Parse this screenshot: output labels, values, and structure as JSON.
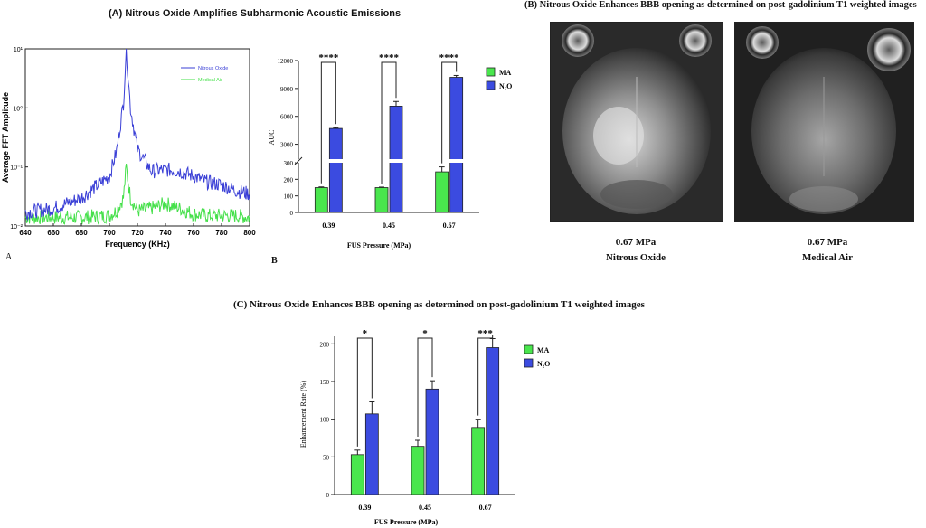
{
  "panel_A": {
    "title": "(A) Nitrous Oxide Amplifies Subharmonic Acoustic Emissions",
    "letter": "A"
  },
  "panel_B": {
    "letter": "B"
  },
  "panel_B_images": {
    "title": "(B)  Nitrous Oxide Enhances BBB opening as determined on post-gadolinium T1 weighted images",
    "left_caption_pressure": "0.67 MPa",
    "left_caption_gas": "Nitrous Oxide",
    "right_caption_pressure": "0.67 MPa",
    "right_caption_gas": "Medical Air"
  },
  "panel_C": {
    "title": "(C)  Nitrous Oxide Enhances BBB opening as determined on post-gadolinium T1 weighted images"
  },
  "colors": {
    "nitrous_blue": "#3a3fd6",
    "air_green": "#45e04a",
    "bar_green": "#49e64d",
    "bar_blue": "#3b4be0"
  },
  "chart_data": [
    {
      "type": "line",
      "xlabel": "Frequency (KHz)",
      "ylabel": "Average FFT Amplitude",
      "x_ticks": [
        "640",
        "660",
        "680",
        "700",
        "720",
        "740",
        "760",
        "780",
        "800"
      ],
      "y_ticks": [
        "10¹",
        "10⁰",
        "10⁻¹",
        "10⁻²"
      ],
      "xlim": [
        640,
        800
      ],
      "ylim": [
        0.01,
        10
      ],
      "yscale": "log",
      "legend_position": "top-right",
      "series": [
        {
          "name": "Nitrous Oxide",
          "x": [
            640,
            660,
            680,
            700,
            705,
            710,
            712,
            715,
            720,
            730,
            740,
            750,
            760,
            770,
            780,
            790,
            800
          ],
          "y": [
            0.017,
            0.02,
            0.03,
            0.07,
            0.18,
            1.2,
            10,
            1.0,
            0.2,
            0.085,
            0.09,
            0.085,
            0.07,
            0.055,
            0.05,
            0.04,
            0.035
          ]
        },
        {
          "name": "Medical Air",
          "x": [
            640,
            660,
            680,
            700,
            705,
            710,
            712,
            715,
            720,
            730,
            740,
            750,
            760,
            770,
            780,
            790,
            800
          ],
          "y": [
            0.014,
            0.014,
            0.014,
            0.015,
            0.018,
            0.03,
            0.1,
            0.03,
            0.018,
            0.02,
            0.024,
            0.02,
            0.016,
            0.015,
            0.015,
            0.015,
            0.014
          ]
        }
      ]
    },
    {
      "type": "bar",
      "ylabel": "AUC",
      "xlabel": "FUS Pressure (MPa)",
      "categories": [
        "0.39",
        "0.45",
        "0.67"
      ],
      "y_ticks_lower": [
        "0",
        "100",
        "200",
        "300"
      ],
      "y_ticks_upper": [
        "3000",
        "6000",
        "9000",
        "12000"
      ],
      "broken_axis": {
        "lower": [
          0,
          300
        ],
        "upper": [
          1500,
          12000
        ]
      },
      "legend_position": "top-right",
      "series": [
        {
          "name": "MA",
          "values": [
            150,
            150,
            245
          ],
          "errors": [
            4,
            3,
            30
          ]
        },
        {
          "name": "N₂O",
          "values": [
            4700,
            7100,
            10200
          ],
          "errors": [
            80,
            500,
            200
          ]
        }
      ],
      "significance": [
        "****",
        "****",
        "****"
      ]
    },
    {
      "type": "bar",
      "ylabel": "Enhancement Rate (%)",
      "xlabel": "FUS Pressure (MPa)",
      "categories": [
        "0.39",
        "0.45",
        "0.67"
      ],
      "y_ticks": [
        "0",
        "50",
        "100",
        "150",
        "200"
      ],
      "ylim": [
        0,
        210
      ],
      "legend_position": "top-right",
      "series": [
        {
          "name": "MA",
          "values": [
            53,
            64,
            89
          ],
          "errors": [
            6,
            8,
            11
          ]
        },
        {
          "name": "N₂O",
          "values": [
            107,
            140,
            195
          ],
          "errors": [
            16,
            11,
            12
          ]
        }
      ],
      "significance": [
        "*",
        "*",
        "***"
      ]
    }
  ]
}
